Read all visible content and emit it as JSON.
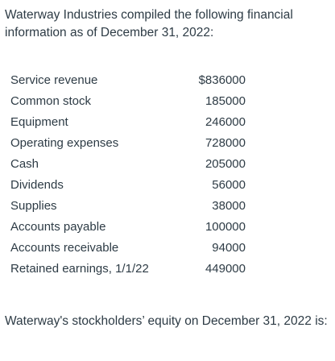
{
  "intro": "Waterway Industries compiled the following financial information as of December 31, 2022:",
  "rows": [
    {
      "label": "Service revenue",
      "value": "$836000"
    },
    {
      "label": "Common stock",
      "value": "185000"
    },
    {
      "label": "Equipment",
      "value": "246000"
    },
    {
      "label": "Operating expenses",
      "value": "728000"
    },
    {
      "label": "Cash",
      "value": "205000"
    },
    {
      "label": "Dividends",
      "value": "56000"
    },
    {
      "label": "Supplies",
      "value": "38000"
    },
    {
      "label": "Accounts payable",
      "value": "100000"
    },
    {
      "label": "Accounts receivable",
      "value": "94000"
    },
    {
      "label": "Retained earnings, 1/1/22",
      "value": "449000"
    }
  ],
  "question": "Waterway's stockholders’ equity on December 31, 2022 is:"
}
